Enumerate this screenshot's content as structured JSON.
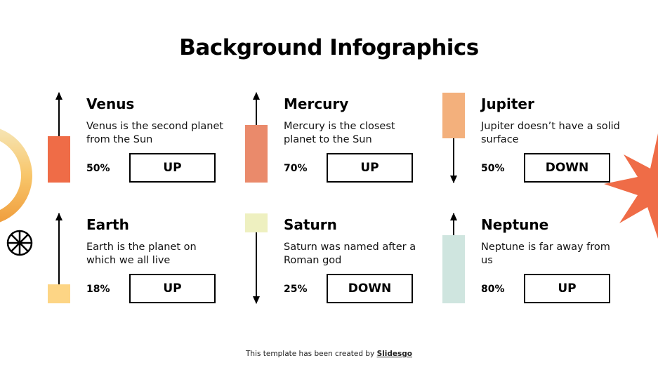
{
  "title": "Background Infographics",
  "cards": [
    {
      "name": "Venus",
      "desc": "Venus is the second planet from the Sun",
      "percent": "50%",
      "direction": "UP",
      "color": "#ef6c47"
    },
    {
      "name": "Mercury",
      "desc": "Mercury is the closest planet to the Sun",
      "percent": "70%",
      "direction": "UP",
      "color": "#ea8a6b"
    },
    {
      "name": "Jupiter",
      "desc": "Jupiter doesn’t have a solid surface",
      "percent": "50%",
      "direction": "DOWN",
      "color": "#f3b07c"
    },
    {
      "name": "Earth",
      "desc": "Earth is the planet on which we all live",
      "percent": "18%",
      "direction": "UP",
      "color": "#fdd585"
    },
    {
      "name": "Saturn",
      "desc": "Saturn was named after a Roman god",
      "percent": "25%",
      "direction": "DOWN",
      "color": "#eef0c0"
    },
    {
      "name": "Neptune",
      "desc": "Neptune is far away from us",
      "percent": "80%",
      "direction": "UP",
      "color": "#cfe5df"
    }
  ],
  "footer": {
    "text": "This template has been created by ",
    "link": "Slidesgo"
  }
}
